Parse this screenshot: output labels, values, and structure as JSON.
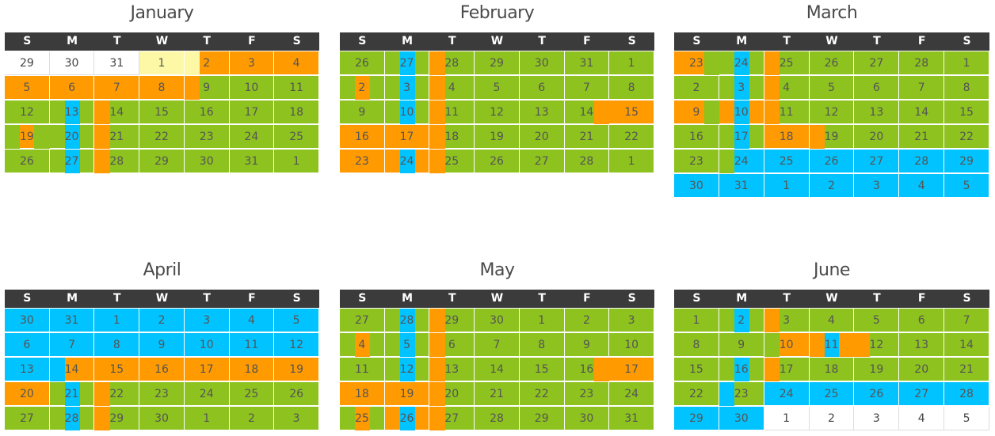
{
  "weekdays": [
    "S",
    "M",
    "T",
    "W",
    "T",
    "F",
    "S"
  ],
  "colors": {
    "green": "#8dc21f",
    "orange": "#ff9a00",
    "blue": "#00c3ff",
    "yellow": "#fcf8a6",
    "white": "#ffffff",
    "header": "#3b3b3b"
  },
  "months": [
    {
      "name": "January",
      "rows": [
        [
          [
            "29",
            "white"
          ],
          [
            "30",
            "white"
          ],
          [
            "31",
            "white"
          ],
          [
            "1",
            "yellow"
          ],
          [
            "2",
            "orange",
            "yellow-left"
          ],
          [
            "3",
            "orange"
          ],
          [
            "4",
            "orange"
          ]
        ],
        [
          [
            "5",
            "orange"
          ],
          [
            "6",
            "orange"
          ],
          [
            "7",
            "orange"
          ],
          [
            "8",
            "orange"
          ],
          [
            "9",
            "green",
            "orange-left"
          ],
          [
            "10",
            "green"
          ],
          [
            "11",
            "green"
          ]
        ],
        [
          [
            "12",
            "green"
          ],
          [
            "13",
            "green",
            "blue-mid"
          ],
          [
            "14",
            "green",
            "orange-left"
          ],
          [
            "15",
            "green"
          ],
          [
            "16",
            "green"
          ],
          [
            "17",
            "green"
          ],
          [
            "18",
            "green"
          ]
        ],
        [
          [
            "19",
            "orange",
            "green-sides"
          ],
          [
            "20",
            "green",
            "blue-mid"
          ],
          [
            "21",
            "green",
            "orange-left"
          ],
          [
            "22",
            "green"
          ],
          [
            "23",
            "green"
          ],
          [
            "24",
            "green"
          ],
          [
            "25",
            "green"
          ]
        ],
        [
          [
            "26",
            "green"
          ],
          [
            "27",
            "green",
            "blue-mid"
          ],
          [
            "28",
            "green",
            "orange-left"
          ],
          [
            "29",
            "green"
          ],
          [
            "30",
            "green"
          ],
          [
            "31",
            "green"
          ],
          [
            "1",
            "green"
          ]
        ]
      ]
    },
    {
      "name": "February",
      "rows": [
        [
          [
            "26",
            "green"
          ],
          [
            "27",
            "green",
            "blue-mid"
          ],
          [
            "28",
            "green",
            "orange-left"
          ],
          [
            "29",
            "green"
          ],
          [
            "30",
            "green"
          ],
          [
            "31",
            "green"
          ],
          [
            "1",
            "green"
          ]
        ],
        [
          [
            "2",
            "green",
            "orange-mid"
          ],
          [
            "3",
            "green",
            "blue-mid"
          ],
          [
            "4",
            "green",
            "orange-left"
          ],
          [
            "5",
            "green"
          ],
          [
            "6",
            "green"
          ],
          [
            "7",
            "green"
          ],
          [
            "8",
            "green"
          ]
        ],
        [
          [
            "9",
            "green"
          ],
          [
            "10",
            "green",
            "blue-mid"
          ],
          [
            "11",
            "green",
            "orange-left"
          ],
          [
            "12",
            "green"
          ],
          [
            "13",
            "green"
          ],
          [
            "14",
            "green",
            "orange-right"
          ],
          [
            "15",
            "orange"
          ]
        ],
        [
          [
            "16",
            "orange"
          ],
          [
            "17",
            "orange"
          ],
          [
            "18",
            "green",
            "orange-left"
          ],
          [
            "19",
            "green"
          ],
          [
            "20",
            "green"
          ],
          [
            "21",
            "green"
          ],
          [
            "22",
            "green"
          ]
        ],
        [
          [
            "23",
            "orange"
          ],
          [
            "24",
            "orange",
            "blue-mid"
          ],
          [
            "25",
            "green",
            "orange-left"
          ],
          [
            "26",
            "green"
          ],
          [
            "27",
            "green"
          ],
          [
            "28",
            "green"
          ],
          [
            "1",
            "green"
          ]
        ]
      ]
    },
    {
      "name": "March",
      "rows": [
        [
          [
            "23",
            "orange",
            "green-right"
          ],
          [
            "24",
            "green",
            "blue-mid"
          ],
          [
            "25",
            "green",
            "orange-left"
          ],
          [
            "26",
            "green"
          ],
          [
            "27",
            "green"
          ],
          [
            "28",
            "green"
          ],
          [
            "1",
            "green"
          ]
        ],
        [
          [
            "2",
            "green"
          ],
          [
            "3",
            "green",
            "blue-mid"
          ],
          [
            "4",
            "green",
            "orange-left"
          ],
          [
            "5",
            "green"
          ],
          [
            "6",
            "green"
          ],
          [
            "7",
            "green"
          ],
          [
            "8",
            "green"
          ]
        ],
        [
          [
            "9",
            "orange",
            "green-right"
          ],
          [
            "10",
            "orange",
            "blue-mid"
          ],
          [
            "11",
            "green",
            "orange-left"
          ],
          [
            "12",
            "green"
          ],
          [
            "13",
            "green"
          ],
          [
            "14",
            "green"
          ],
          [
            "15",
            "green"
          ]
        ],
        [
          [
            "16",
            "green"
          ],
          [
            "17",
            "green",
            "blue-mid"
          ],
          [
            "18",
            "orange"
          ],
          [
            "19",
            "green",
            "orange-left"
          ],
          [
            "20",
            "green"
          ],
          [
            "21",
            "green"
          ],
          [
            "22",
            "green"
          ]
        ],
        [
          [
            "23",
            "green"
          ],
          [
            "24",
            "blue",
            "green-left"
          ],
          [
            "25",
            "blue"
          ],
          [
            "26",
            "blue"
          ],
          [
            "27",
            "blue"
          ],
          [
            "28",
            "blue"
          ],
          [
            "29",
            "blue"
          ]
        ],
        [
          [
            "30",
            "blue"
          ],
          [
            "31",
            "blue"
          ],
          [
            "1",
            "blue"
          ],
          [
            "2",
            "blue"
          ],
          [
            "3",
            "blue"
          ],
          [
            "4",
            "blue"
          ],
          [
            "5",
            "blue"
          ]
        ]
      ]
    },
    {
      "name": "April",
      "rows": [
        [
          [
            "30",
            "blue"
          ],
          [
            "31",
            "blue"
          ],
          [
            "1",
            "blue"
          ],
          [
            "2",
            "blue"
          ],
          [
            "3",
            "blue"
          ],
          [
            "4",
            "blue"
          ],
          [
            "5",
            "blue"
          ]
        ],
        [
          [
            "6",
            "blue"
          ],
          [
            "7",
            "blue"
          ],
          [
            "8",
            "blue"
          ],
          [
            "9",
            "blue"
          ],
          [
            "10",
            "blue"
          ],
          [
            "11",
            "blue"
          ],
          [
            "12",
            "blue"
          ]
        ],
        [
          [
            "13",
            "blue"
          ],
          [
            "14",
            "orange",
            "blue-left"
          ],
          [
            "15",
            "orange"
          ],
          [
            "16",
            "orange"
          ],
          [
            "17",
            "orange"
          ],
          [
            "18",
            "orange"
          ],
          [
            "19",
            "orange"
          ]
        ],
        [
          [
            "20",
            "orange"
          ],
          [
            "21",
            "green",
            "blue-mid"
          ],
          [
            "22",
            "green",
            "orange-left"
          ],
          [
            "23",
            "green"
          ],
          [
            "24",
            "green"
          ],
          [
            "25",
            "green"
          ],
          [
            "26",
            "green"
          ]
        ],
        [
          [
            "27",
            "green"
          ],
          [
            "28",
            "green",
            "blue-mid"
          ],
          [
            "29",
            "green",
            "orange-left"
          ],
          [
            "30",
            "green"
          ],
          [
            "1",
            "green"
          ],
          [
            "2",
            "green"
          ],
          [
            "3",
            "green"
          ]
        ]
      ]
    },
    {
      "name": "May",
      "rows": [
        [
          [
            "27",
            "green"
          ],
          [
            "28",
            "green",
            "blue-mid"
          ],
          [
            "29",
            "green",
            "orange-left"
          ],
          [
            "30",
            "green"
          ],
          [
            "1",
            "green"
          ],
          [
            "2",
            "green"
          ],
          [
            "3",
            "green"
          ]
        ],
        [
          [
            "4",
            "green",
            "orange-mid"
          ],
          [
            "5",
            "green",
            "blue-mid"
          ],
          [
            "6",
            "green",
            "orange-left"
          ],
          [
            "7",
            "green"
          ],
          [
            "8",
            "green"
          ],
          [
            "9",
            "green"
          ],
          [
            "10",
            "green"
          ]
        ],
        [
          [
            "11",
            "green"
          ],
          [
            "12",
            "green",
            "blue-mid"
          ],
          [
            "13",
            "green",
            "orange-left"
          ],
          [
            "14",
            "green"
          ],
          [
            "15",
            "green"
          ],
          [
            "16",
            "green",
            "orange-right"
          ],
          [
            "17",
            "orange"
          ]
        ],
        [
          [
            "18",
            "orange"
          ],
          [
            "19",
            "orange"
          ],
          [
            "20",
            "green",
            "orange-left"
          ],
          [
            "21",
            "green"
          ],
          [
            "22",
            "green"
          ],
          [
            "23",
            "green"
          ],
          [
            "24",
            "green"
          ]
        ],
        [
          [
            "25",
            "green",
            "orange-mid"
          ],
          [
            "26",
            "orange",
            "blue-mid"
          ],
          [
            "27",
            "green",
            "orange-left"
          ],
          [
            "28",
            "green"
          ],
          [
            "29",
            "green"
          ],
          [
            "30",
            "green"
          ],
          [
            "31",
            "green"
          ]
        ]
      ]
    },
    {
      "name": "June",
      "rows": [
        [
          [
            "1",
            "green"
          ],
          [
            "2",
            "green",
            "blue-mid"
          ],
          [
            "3",
            "green",
            "orange-left"
          ],
          [
            "4",
            "green"
          ],
          [
            "5",
            "green"
          ],
          [
            "6",
            "green"
          ],
          [
            "7",
            "green"
          ]
        ],
        [
          [
            "8",
            "green"
          ],
          [
            "9",
            "green"
          ],
          [
            "10",
            "orange",
            "green-left"
          ],
          [
            "11",
            "green",
            "blue-mid-orange"
          ],
          [
            "12",
            "green",
            "orange-left"
          ],
          [
            "13",
            "green"
          ],
          [
            "14",
            "green"
          ]
        ],
        [
          [
            "15",
            "green"
          ],
          [
            "16",
            "green",
            "blue-mid"
          ],
          [
            "17",
            "green",
            "orange-left"
          ],
          [
            "18",
            "green"
          ],
          [
            "19",
            "green"
          ],
          [
            "20",
            "green"
          ],
          [
            "21",
            "green"
          ]
        ],
        [
          [
            "22",
            "green"
          ],
          [
            "23",
            "green",
            "blue-left"
          ],
          [
            "24",
            "blue"
          ],
          [
            "25",
            "blue"
          ],
          [
            "26",
            "blue"
          ],
          [
            "27",
            "blue"
          ],
          [
            "28",
            "blue"
          ]
        ],
        [
          [
            "29",
            "blue"
          ],
          [
            "30",
            "blue"
          ],
          [
            "1",
            "white"
          ],
          [
            "2",
            "white"
          ],
          [
            "3",
            "white"
          ],
          [
            "4",
            "white"
          ],
          [
            "5",
            "white"
          ]
        ]
      ]
    }
  ]
}
